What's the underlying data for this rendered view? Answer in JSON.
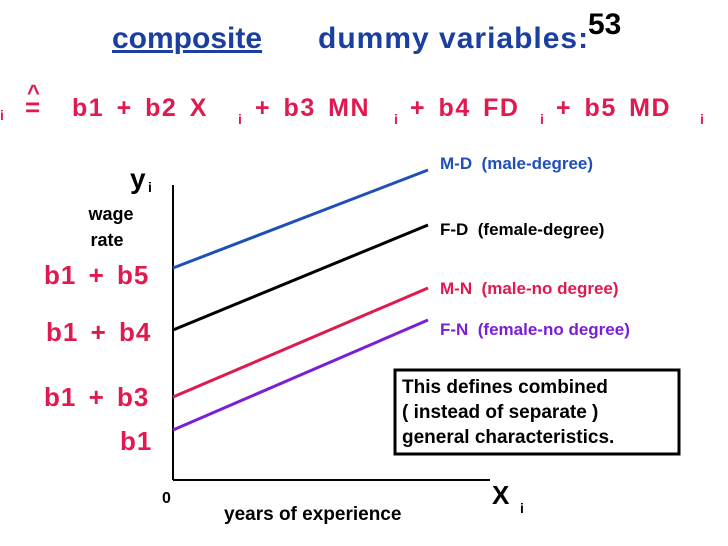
{
  "slide_number": "53",
  "title": {
    "underlined": "composite",
    "rest": "dummy variables:"
  },
  "equation": {
    "lhs_sub": "i",
    "hat": "^",
    "equals": "=",
    "terms": [
      {
        "text": "b1 + b2 X",
        "sub": "i"
      },
      {
        "text": "+ b3 MN",
        "sub": "i"
      },
      {
        "text": "+ b4 FD",
        "sub": "i"
      },
      {
        "text": "+ b5 MD",
        "sub": "i"
      }
    ]
  },
  "y_axis": {
    "symbol": "y",
    "sub": "i",
    "label_lines": [
      "wage",
      "rate"
    ]
  },
  "x_axis": {
    "symbol": "X",
    "sub": "i",
    "origin": "0",
    "label": "years of experience"
  },
  "intercepts": [
    "b1 + b5",
    "b1 + b4",
    "b1 + b3",
    "b1"
  ],
  "lines": [
    {
      "label": "M-D  (male-degree)",
      "color": "#1f4fb8"
    },
    {
      "label": "F-D  (female-degree)",
      "color": "#000000"
    },
    {
      "label": "M-N  (male-no degree)",
      "color": "#e0194f"
    },
    {
      "label": "F-N  (female-no degree)",
      "color": "#7a1fd6"
    }
  ],
  "note": [
    "This defines combined",
    "( instead of separate )",
    "general characteristics."
  ]
}
